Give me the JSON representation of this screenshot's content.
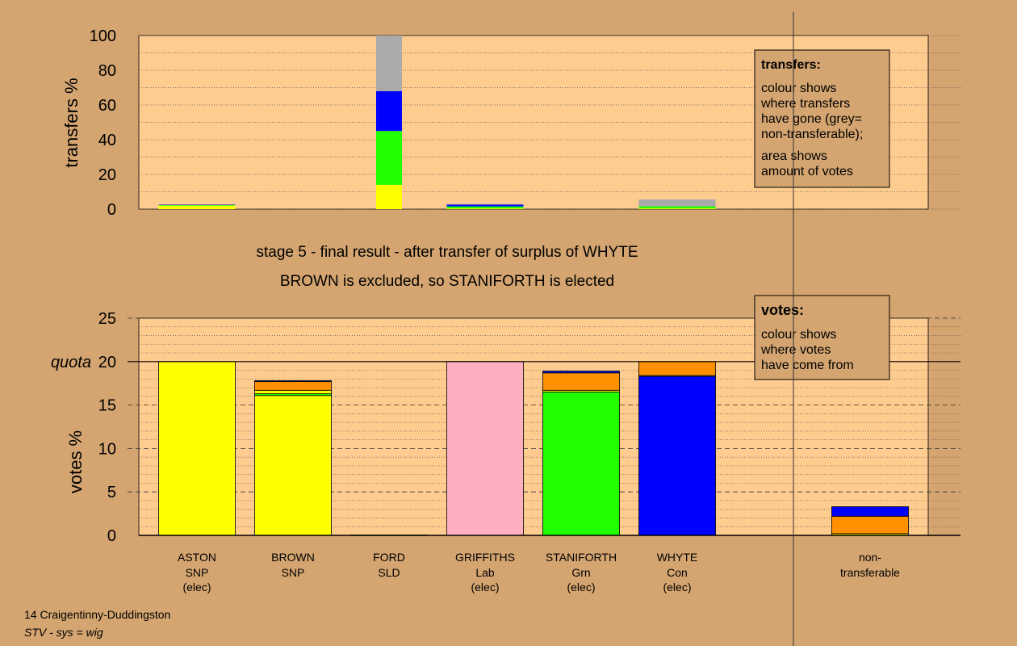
{
  "colors": {
    "background": "#D4A570",
    "panel": "#FFCC8F",
    "SNP": "#FFFF00",
    "SLD": "#FF9000",
    "Lab": "#FFB0C0",
    "Grn": "#22FF00",
    "Con": "#0000FF",
    "nontransferable": "#AAAAAA"
  },
  "header": {
    "line1": "stage 5 - final result - after transfer of surplus of WHYTE",
    "line2": "BROWN is excluded, so STANIFORTH is elected"
  },
  "footer": {
    "constituency": "14 Craigentinny-Duddingston",
    "system": "STV - sys = wig"
  },
  "chart_data": [
    {
      "type": "bar",
      "ylabel": "transfers %",
      "ylim": [
        0,
        100
      ],
      "yticks": [
        0,
        20,
        40,
        60,
        80,
        100
      ],
      "categories": [
        "ASTON",
        "BROWN",
        "FORD",
        "GRIFFITHS",
        "STANIFORTH",
        "WHYTE",
        "non-transferable"
      ],
      "stacks": [
        {
          "category": "ASTON",
          "segments": [
            {
              "party": "SNP",
              "value": 2
            },
            {
              "party": "Grn",
              "value": 0.4
            },
            {
              "party": "Con",
              "value": 0.2
            }
          ]
        },
        {
          "category": "FORD",
          "segments": [
            {
              "party": "SNP",
              "value": 14
            },
            {
              "party": "Grn",
              "value": 31
            },
            {
              "party": "Con",
              "value": 23
            },
            {
              "party": "nontransferable",
              "value": 32
            }
          ]
        },
        {
          "category": "GRIFFITHS",
          "segments": [
            {
              "party": "SNP",
              "value": 0.4
            },
            {
              "party": "Grn",
              "value": 1.2
            },
            {
              "party": "Con",
              "value": 1
            },
            {
              "party": "nontransferable",
              "value": 0.4
            }
          ]
        },
        {
          "category": "WHYTE",
          "segments": [
            {
              "party": "SNP",
              "value": 0.4
            },
            {
              "party": "Grn",
              "value": 1.2
            },
            {
              "party": "nontransferable",
              "value": 4
            }
          ]
        }
      ],
      "legend": {
        "title": "transfers:",
        "text1": [
          "colour shows",
          "where transfers",
          "have gone (grey=",
          "non-transferable);"
        ],
        "text2": [
          "area shows",
          "amount of votes"
        ]
      }
    },
    {
      "type": "bar",
      "ylabel": "votes %",
      "ylim": [
        0,
        25
      ],
      "yticks": [
        0,
        5,
        10,
        15,
        20,
        25
      ],
      "quota": 20,
      "quota_label": "quota",
      "categories": [
        {
          "name": "ASTON",
          "party": "SNP",
          "note": "(elec)"
        },
        {
          "name": "BROWN",
          "party": "SNP",
          "note": ""
        },
        {
          "name": "FORD",
          "party": "SLD",
          "note": ""
        },
        {
          "name": "GRIFFITHS",
          "party": "Lab",
          "note": "(elec)"
        },
        {
          "name": "STANIFORTH",
          "party": "Grn",
          "note": "(elec)"
        },
        {
          "name": "WHYTE",
          "party": "Con",
          "note": "(elec)"
        },
        {
          "name": "non-",
          "party": "transferable",
          "note": ""
        }
      ],
      "stacks": [
        {
          "category": "ASTON",
          "segments": [
            {
              "party": "SNP",
              "value": 20
            }
          ]
        },
        {
          "category": "BROWN",
          "segments": [
            {
              "party": "SNP",
              "value": 16.1
            },
            {
              "party": "Grn",
              "value": 0.2
            },
            {
              "party": "SNP",
              "value": 0.4
            },
            {
              "party": "SLD",
              "value": 1
            },
            {
              "party": "Con",
              "value": 0.1
            }
          ]
        },
        {
          "category": "FORD",
          "segments": [
            {
              "party": "SLD",
              "value": 0.05
            }
          ]
        },
        {
          "category": "GRIFFITHS",
          "segments": [
            {
              "party": "Lab",
              "value": 20
            }
          ]
        },
        {
          "category": "STANIFORTH",
          "segments": [
            {
              "party": "Grn",
              "value": 16.5
            },
            {
              "party": "SNP",
              "value": 0.2
            },
            {
              "party": "SLD",
              "value": 2
            },
            {
              "party": "Con",
              "value": 0.2
            }
          ]
        },
        {
          "category": "WHYTE",
          "segments": [
            {
              "party": "Con",
              "value": 18.3
            },
            {
              "party": "SNP",
              "value": 0.1
            },
            {
              "party": "SLD",
              "value": 1.6
            }
          ]
        },
        {
          "category": "non-transferable",
          "segments": [
            {
              "party": "SNP",
              "value": 0.2
            },
            {
              "party": "SLD",
              "value": 2
            },
            {
              "party": "Con",
              "value": 1.1
            }
          ]
        }
      ],
      "legend": {
        "title": "votes:",
        "text1": [
          "colour shows",
          "where votes",
          "have come from"
        ]
      }
    }
  ]
}
